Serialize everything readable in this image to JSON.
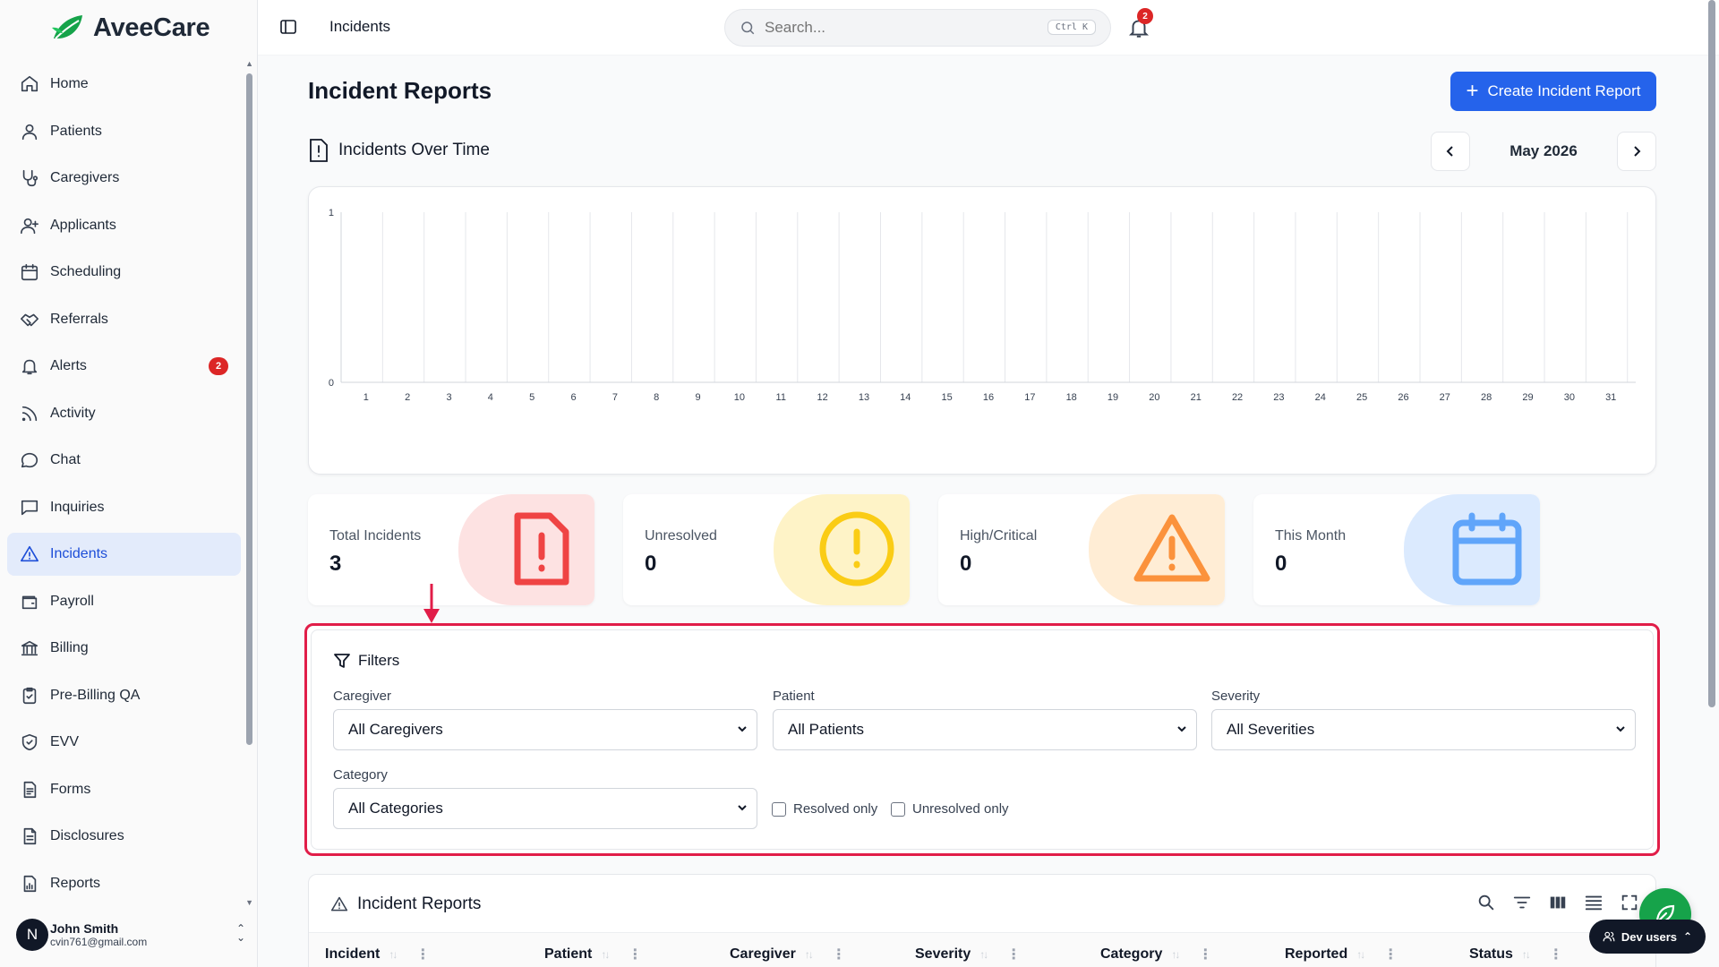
{
  "app": {
    "name": "AveeCare"
  },
  "sidebar": {
    "items": [
      {
        "label": "Home",
        "icon": "home-icon"
      },
      {
        "label": "Patients",
        "icon": "user-icon"
      },
      {
        "label": "Caregivers",
        "icon": "stethoscope-icon"
      },
      {
        "label": "Applicants",
        "icon": "user-plus-icon"
      },
      {
        "label": "Scheduling",
        "icon": "calendar-icon"
      },
      {
        "label": "Referrals",
        "icon": "handshake-icon"
      },
      {
        "label": "Alerts",
        "icon": "bell-icon",
        "badge": "2"
      },
      {
        "label": "Activity",
        "icon": "rss-icon"
      },
      {
        "label": "Chat",
        "icon": "chat-icon"
      },
      {
        "label": "Inquiries",
        "icon": "message-square-icon"
      },
      {
        "label": "Incidents",
        "icon": "warning-icon",
        "active": true
      },
      {
        "label": "Payroll",
        "icon": "wallet-icon"
      },
      {
        "label": "Billing",
        "icon": "bank-icon"
      },
      {
        "label": "Pre-Billing QA",
        "icon": "clipboard-check-icon"
      },
      {
        "label": "EVV",
        "icon": "shield-check-icon"
      },
      {
        "label": "Forms",
        "icon": "form-icon"
      },
      {
        "label": "Disclosures",
        "icon": "document-icon"
      },
      {
        "label": "Reports",
        "icon": "report-icon"
      }
    ],
    "user": {
      "initial": "N",
      "name": "John Smith",
      "email": "cvin761@gmail.com"
    }
  },
  "topbar": {
    "breadcrumb": "Incidents",
    "search": {
      "placeholder": "Search...",
      "shortcut": "Ctrl K"
    },
    "notifications_count": "2"
  },
  "page": {
    "title": "Incident Reports",
    "create_button": "Create Incident Report"
  },
  "chart_section": {
    "title": "Incidents Over Time",
    "month_label": "May 2026"
  },
  "chart_data": {
    "type": "bar",
    "x": [
      1,
      2,
      3,
      4,
      5,
      6,
      7,
      8,
      9,
      10,
      11,
      12,
      13,
      14,
      15,
      16,
      17,
      18,
      19,
      20,
      21,
      22,
      23,
      24,
      25,
      26,
      27,
      28,
      29,
      30,
      31
    ],
    "values": [
      0,
      0,
      0,
      0,
      0,
      0,
      0,
      0,
      0,
      0,
      0,
      0,
      0,
      0,
      0,
      0,
      0,
      0,
      0,
      0,
      0,
      0,
      0,
      0,
      0,
      0,
      0,
      0,
      0,
      0,
      0
    ],
    "ylim": [
      0,
      1
    ],
    "yticks": [
      0,
      1
    ],
    "grid": true,
    "legend": "none"
  },
  "stats": [
    {
      "label": "Total Incidents",
      "value": "3",
      "icon": "file-alert-icon",
      "color": "#ef4444",
      "bg": "#fde2e2"
    },
    {
      "label": "Unresolved",
      "value": "0",
      "icon": "alert-circle-icon",
      "color": "#facc15",
      "bg": "#fef3c7"
    },
    {
      "label": "High/Critical",
      "value": "0",
      "icon": "triangle-alert-icon",
      "color": "#fb923c",
      "bg": "#ffedd5"
    },
    {
      "label": "This Month",
      "value": "0",
      "icon": "calendar-icon",
      "color": "#60a5fa",
      "bg": "#dbeafe"
    }
  ],
  "filters": {
    "title": "Filters",
    "caregiver": {
      "label": "Caregiver",
      "value": "All Caregivers"
    },
    "patient": {
      "label": "Patient",
      "value": "All Patients"
    },
    "severity": {
      "label": "Severity",
      "value": "All Severities"
    },
    "category": {
      "label": "Category",
      "value": "All Categories"
    },
    "resolved_only": "Resolved only",
    "unresolved_only": "Unresolved only"
  },
  "table": {
    "title": "Incident Reports",
    "columns": [
      "Incident",
      "Patient",
      "Caregiver",
      "Severity",
      "Category",
      "Reported",
      "Status"
    ]
  },
  "dev_pill": "Dev users",
  "colors": {
    "accent": "#2563eb",
    "highlight": "#e11d48",
    "active_nav_bg": "#e3ebfb"
  }
}
